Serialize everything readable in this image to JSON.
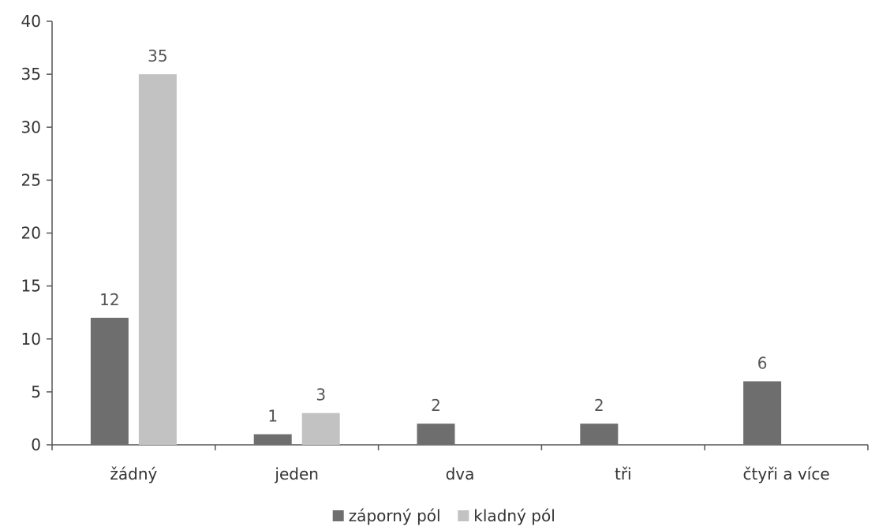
{
  "chart_data": {
    "type": "bar",
    "title": "",
    "xlabel": "",
    "ylabel": "",
    "categories": [
      "žádný",
      "jeden",
      "dva",
      "tři",
      "čtyři a více"
    ],
    "series": [
      {
        "name": "záporný pól",
        "values": [
          12,
          1,
          2,
          2,
          6
        ],
        "color": "#6e6e6e"
      },
      {
        "name": "kladný pól",
        "values": [
          35,
          3,
          null,
          null,
          null
        ],
        "color": "#c2c2c2"
      }
    ],
    "ylim": [
      0,
      40
    ],
    "yticks": [
      0,
      5,
      10,
      15,
      20,
      25,
      30,
      35,
      40
    ],
    "grid": false,
    "legend_position": "bottom-center",
    "data_labels": true
  }
}
